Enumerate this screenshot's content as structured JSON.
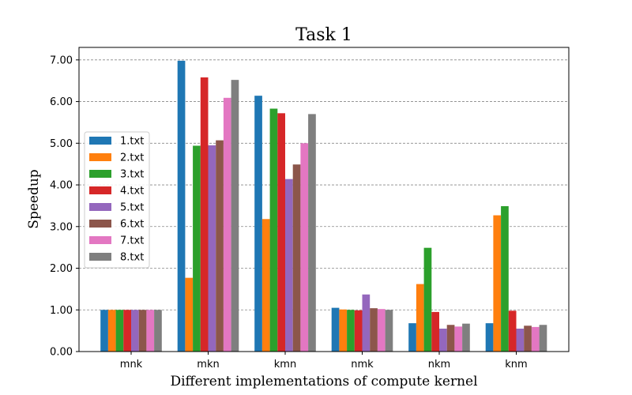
{
  "chart_data": {
    "type": "bar",
    "title": "Task 1",
    "xlabel": "Different implementations of compute kernel",
    "ylabel": "Speedup",
    "categories": [
      "mnk",
      "mkn",
      "kmn",
      "nmk",
      "nkm",
      "knm"
    ],
    "ylim": [
      0,
      7.3
    ],
    "yticks": [
      0,
      1,
      2,
      3,
      4,
      5,
      6,
      7
    ],
    "ytick_labels": [
      "0.00",
      "1.00",
      "2.00",
      "3.00",
      "4.00",
      "5.00",
      "6.00",
      "7.00"
    ],
    "grid": "horizontal dashed",
    "legend_position": "center-left",
    "series": [
      {
        "name": "1.txt",
        "color": "#1f77b4",
        "values": [
          1.0,
          6.98,
          6.14,
          1.05,
          0.68,
          0.68
        ]
      },
      {
        "name": "2.txt",
        "color": "#ff7f0e",
        "values": [
          1.0,
          1.77,
          3.18,
          1.01,
          1.62,
          3.27
        ]
      },
      {
        "name": "3.txt",
        "color": "#2ca02c",
        "values": [
          1.0,
          4.94,
          5.83,
          1.0,
          2.49,
          3.49
        ]
      },
      {
        "name": "4.txt",
        "color": "#d62728",
        "values": [
          1.0,
          6.58,
          5.72,
          0.99,
          0.95,
          0.98
        ]
      },
      {
        "name": "5.txt",
        "color": "#9467bd",
        "values": [
          1.0,
          4.95,
          4.14,
          1.37,
          0.55,
          0.55
        ]
      },
      {
        "name": "6.txt",
        "color": "#8c564b",
        "values": [
          1.0,
          5.07,
          4.49,
          1.04,
          0.64,
          0.62
        ]
      },
      {
        "name": "7.txt",
        "color": "#e377c2",
        "values": [
          1.0,
          6.09,
          5.0,
          1.02,
          0.6,
          0.59
        ]
      },
      {
        "name": "8.txt",
        "color": "#7f7f7f",
        "values": [
          1.0,
          6.52,
          5.7,
          1.0,
          0.67,
          0.64
        ]
      }
    ]
  }
}
